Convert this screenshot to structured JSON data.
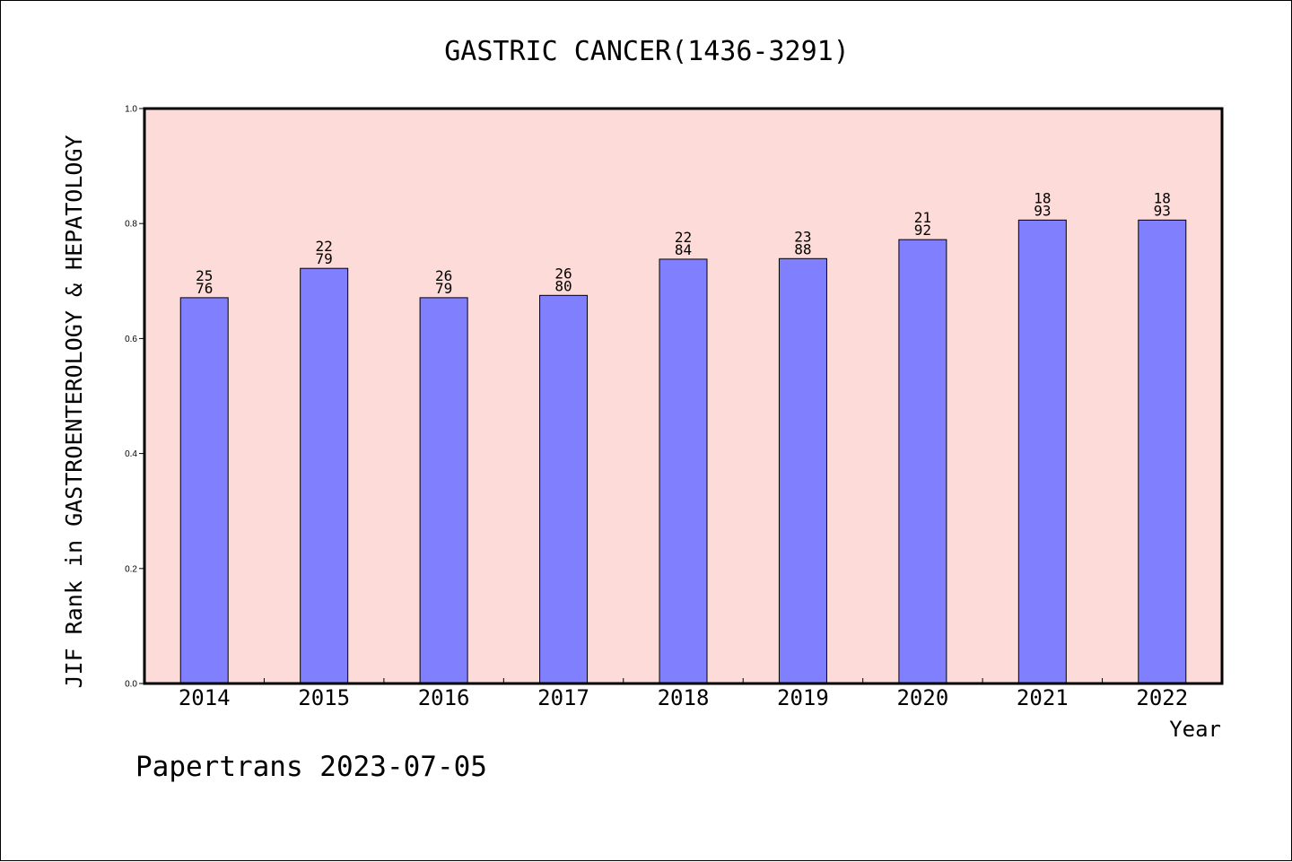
{
  "chart_data": {
    "type": "bar",
    "title": "GASTRIC CANCER(1436-3291)",
    "xlabel": "Year",
    "ylabel": "JIF Rank in GASTROENTEROLOGY & HEPATOLOGY",
    "categories": [
      "2014",
      "2015",
      "2016",
      "2017",
      "2018",
      "2019",
      "2020",
      "2021",
      "2022"
    ],
    "values": [
      0.671,
      0.722,
      0.671,
      0.675,
      0.738,
      0.739,
      0.772,
      0.806,
      0.806
    ],
    "rank_labels": [
      {
        "rank": "25",
        "total": "76"
      },
      {
        "rank": "22",
        "total": "79"
      },
      {
        "rank": "26",
        "total": "79"
      },
      {
        "rank": "26",
        "total": "80"
      },
      {
        "rank": "22",
        "total": "84"
      },
      {
        "rank": "23",
        "total": "88"
      },
      {
        "rank": "21",
        "total": "92"
      },
      {
        "rank": "18",
        "total": "93"
      },
      {
        "rank": "18",
        "total": "93"
      }
    ],
    "ylim": [
      0,
      1.0
    ],
    "yticks": [
      "0.0",
      "0.2",
      "0.4",
      "0.6",
      "0.8",
      "1.0"
    ],
    "grid": false,
    "legend": "none",
    "colors": {
      "plot_background": "#fddbd8",
      "bar_fill": "#8080ff",
      "bar_stroke": "#000000"
    }
  },
  "footer": "Papertrans 2023-07-05"
}
